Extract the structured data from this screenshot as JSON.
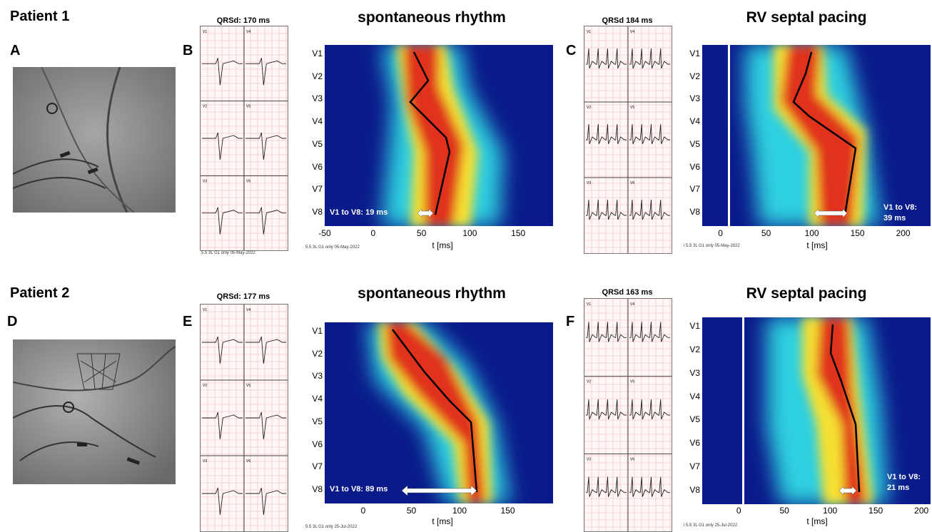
{
  "patients": [
    {
      "label": "Patient 1",
      "xray_letter": "A",
      "ecg_letter": "B",
      "qrsd_spont": "QRSd: 170 ms",
      "ecg_footer_spont": "5.5 3L G1 only 05-May-2022",
      "spont_title": "spontaneous rhythm",
      "spont_annotation": "V1 to V8: 19 ms",
      "spont_ticks": [
        "-50",
        "0",
        "50",
        "100",
        "150"
      ],
      "pace_letter": "C",
      "qrsd_pace": "QRSd 184 ms",
      "ecg_footer_pace": "i 5.5 3L G1 only 05-May-2022",
      "pace_title": "RV septal pacing",
      "pace_annotation_l1": "V1 to V8:",
      "pace_annotation_l2": "39 ms",
      "pace_ticks": [
        "0",
        "50",
        "100",
        "150",
        "200"
      ]
    },
    {
      "label": "Patient 2",
      "xray_letter": "D",
      "ecg_letter": "E",
      "qrsd_spont": "QRSd: 177 ms",
      "ecg_footer_spont": "5.5 3L G1 only 25-Jul-2022",
      "spont_title": "spontaneous rhythm",
      "spont_annotation": "V1 to V8: 89 ms",
      "spont_ticks": [
        "0",
        "50",
        "100",
        "150"
      ],
      "pace_letter": "F",
      "qrsd_pace": "QRSd 163 ms",
      "ecg_footer_pace": "i 5.5 3L G1 only 25-Jul-2022",
      "pace_title": "RV septal pacing",
      "pace_annotation_l1": "V1 to V8:",
      "pace_annotation_l2": "21 ms",
      "pace_ticks": [
        "0",
        "50",
        "100",
        "150",
        "200"
      ]
    }
  ],
  "leads": [
    "V1",
    "V2",
    "V3",
    "V4",
    "V5",
    "V6",
    "V7",
    "V8"
  ],
  "ecg_leads": [
    "V1",
    "V4",
    "V2",
    "V5",
    "V3",
    "V6"
  ],
  "xlabel": "t  [ms]",
  "colors": {
    "heat_bg": "#0a1a8a",
    "xray": "#8a8a8a",
    "ecg_grid": "#f0b8b8"
  }
}
